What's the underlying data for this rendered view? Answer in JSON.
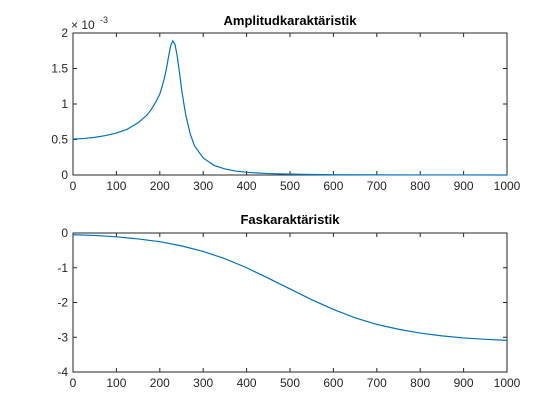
{
  "chart_data": [
    {
      "type": "line",
      "title": "Amplitudkaraktäristik",
      "xlabel": "",
      "ylabel": "",
      "xlim": [
        0,
        1000
      ],
      "ylim": [
        0,
        0.002
      ],
      "y_exponent_label": "× 10",
      "y_exponent_power": "-3",
      "x_ticks": [
        "0",
        "100",
        "200",
        "300",
        "400",
        "500",
        "600",
        "700",
        "800",
        "900",
        "1000"
      ],
      "y_ticks": [
        "0",
        "0.5",
        "1",
        "1.5",
        "2"
      ],
      "grid": false,
      "line_color": "#0072bd",
      "series": [
        {
          "x": [
            0,
            25,
            50,
            75,
            100,
            125,
            150,
            170,
            180,
            190,
            200,
            205,
            210,
            215,
            220,
            225,
            230,
            235,
            240,
            245,
            250,
            255,
            260,
            270,
            280,
            300,
            325,
            350,
            375,
            400,
            450,
            500,
            550,
            600,
            700,
            800,
            900,
            1000
          ],
          "y": [
            0.000505,
            0.000515,
            0.00053,
            0.000555,
            0.00059,
            0.000645,
            0.000735,
            0.00084,
            0.00092,
            0.00102,
            0.00114,
            0.00124,
            0.00135,
            0.00149,
            0.00166,
            0.00182,
            0.00189,
            0.00184,
            0.00168,
            0.00146,
            0.00122,
            0.00102,
            0.00084,
            0.00058,
            0.00041,
            0.00024,
            0.000135,
            8.5e-05,
            5.5e-05,
            3.8e-05,
            2e-05,
            1.2e-05,
            7e-06,
            4e-06,
            2e-06,
            1e-06,
            5e-07,
            3e-07
          ]
        }
      ]
    },
    {
      "type": "line",
      "title": "Faskaraktäristik",
      "xlabel": "",
      "ylabel": "",
      "xlim": [
        0,
        1000
      ],
      "ylim": [
        -4,
        0
      ],
      "x_ticks": [
        "0",
        "100",
        "200",
        "300",
        "400",
        "500",
        "600",
        "700",
        "800",
        "900",
        "1000"
      ],
      "y_ticks": [
        "0",
        "-1",
        "-2",
        "-3",
        "-4"
      ],
      "grid": false,
      "line_color": "#0072bd",
      "series": [
        {
          "x": [
            0,
            50,
            100,
            150,
            200,
            250,
            300,
            350,
            400,
            450,
            500,
            550,
            600,
            650,
            700,
            750,
            800,
            850,
            900,
            950,
            1000
          ],
          "y": [
            -0.05,
            -0.07,
            -0.11,
            -0.17,
            -0.25,
            -0.37,
            -0.53,
            -0.74,
            -1.0,
            -1.3,
            -1.61,
            -1.92,
            -2.2,
            -2.44,
            -2.63,
            -2.77,
            -2.88,
            -2.96,
            -3.02,
            -3.06,
            -3.09
          ]
        }
      ]
    }
  ]
}
